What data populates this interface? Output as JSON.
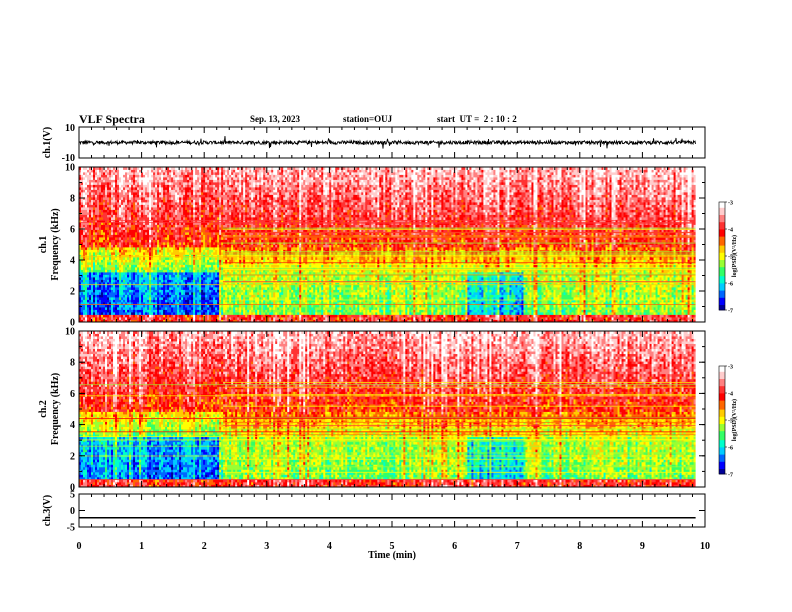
{
  "header": {
    "title": "VLF Spectra",
    "date": "Sep. 13, 2023",
    "station": "station=OUJ",
    "start_ut": "start  UT =  2 : 10 : 2"
  },
  "colors": {
    "colormap": [
      "#000099",
      "#0000ff",
      "#0066ff",
      "#00ccff",
      "#00ffcc",
      "#33ff66",
      "#99ff33",
      "#ffff00",
      "#ffcc00",
      "#ff6600",
      "#ff0000",
      "#ff3333",
      "#ff8080",
      "#ffcccc",
      "#ffffff"
    ],
    "trace": "#000000",
    "axes": "#000000"
  },
  "chart_data": [
    {
      "type": "line",
      "panel": "waveform-ch1",
      "ylabel": "ch.1(V)",
      "xlim": [
        0,
        10
      ],
      "ylim": [
        -10,
        10
      ],
      "yticks": [
        "10",
        "-10"
      ],
      "x_end": 9.85,
      "trace": "noisy waveform with amplitude roughly ±2 V around 0"
    },
    {
      "type": "heatmap",
      "panel": "spectrogram-ch1",
      "ylabel": "ch.1 Frequency (kHz)",
      "xlim": [
        0,
        10
      ],
      "ylim": [
        0,
        10
      ],
      "yticks": [
        "0",
        "2",
        "4",
        "6",
        "8",
        "10"
      ],
      "x_end": 9.85,
      "colorbar": {
        "label": "log(PSD)(V²/Hz)",
        "range": [
          -7,
          -3
        ],
        "ticks": [
          "-3",
          "-4",
          "-5",
          "-6",
          "-7"
        ]
      },
      "description": "high power (red) above ~4 kHz, low power (blue) near 1-3 kHz, transitions at ~2.3 min and ~6.3 min"
    },
    {
      "type": "heatmap",
      "panel": "spectrogram-ch2",
      "ylabel": "ch.2 Frequency (kHz)",
      "xlim": [
        0,
        10
      ],
      "ylim": [
        0,
        10
      ],
      "yticks": [
        "0",
        "2",
        "4",
        "6",
        "8",
        "10"
      ],
      "x_end": 9.85,
      "colorbar": {
        "label": "log(PSD)(V²/Hz)",
        "range": [
          -7,
          -3
        ],
        "ticks": [
          "-3",
          "-4",
          "-5",
          "-6",
          "-7"
        ]
      },
      "description": "similar to ch.1 with stronger power above ~4 kHz, blue band 0.5-3 kHz before ~2.2 min"
    },
    {
      "type": "line",
      "panel": "waveform-ch3",
      "ylabel": "ch.3(V)",
      "xlim": [
        0,
        10
      ],
      "ylim": [
        -5,
        5
      ],
      "yticks": [
        "5",
        "0",
        "-5"
      ],
      "x_end": 9.85,
      "constant_value": -2.2,
      "xlabel": "Time (min)",
      "xticks": [
        "0",
        "1",
        "2",
        "3",
        "4",
        "5",
        "6",
        "7",
        "8",
        "9",
        "10"
      ]
    }
  ]
}
